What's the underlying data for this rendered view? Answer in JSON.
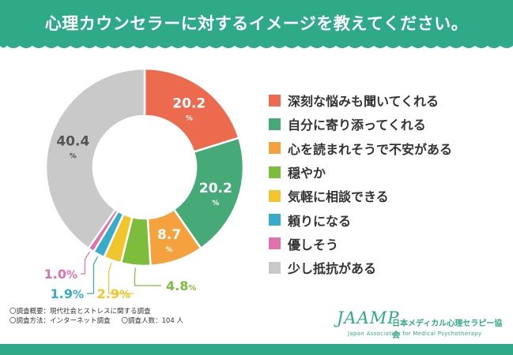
{
  "title": "心理カウンセラーに対するイメージを教えてください。",
  "chart_data": {
    "type": "pie",
    "categories": [
      "深刻な悩みも聞いてくれる",
      "自分に寄り添ってくれる",
      "心を読まれそうで不安がある",
      "穏やか",
      "気軽に相談できる",
      "頼りになる",
      "優しそう",
      "少し抵抗がある"
    ],
    "values": [
      20.2,
      20.2,
      8.7,
      4.8,
      2.9,
      1.9,
      1.0,
      40.4
    ],
    "colors": [
      "#ec6a4e",
      "#45aa77",
      "#f4a13e",
      "#7cbd3c",
      "#f1c52c",
      "#37acca",
      "#e070ae",
      "#c9c9c9"
    ],
    "value_labels": [
      "20.2",
      "20.2",
      "8.7",
      "4.8",
      "2.9",
      "1.9",
      "1.0",
      "40.4"
    ],
    "unit": "%"
  },
  "notes": {
    "overview": "〇調査概要：現代社会とストレスに関する調査",
    "method": "〇調査方法：インターネット調査",
    "count": "〇調査人数：104 人"
  },
  "logo": {
    "main": "JAAMP",
    "jp": "日本メディカル心理セラピー協会",
    "en": "Japan Association for Medical Psychotherapy"
  }
}
